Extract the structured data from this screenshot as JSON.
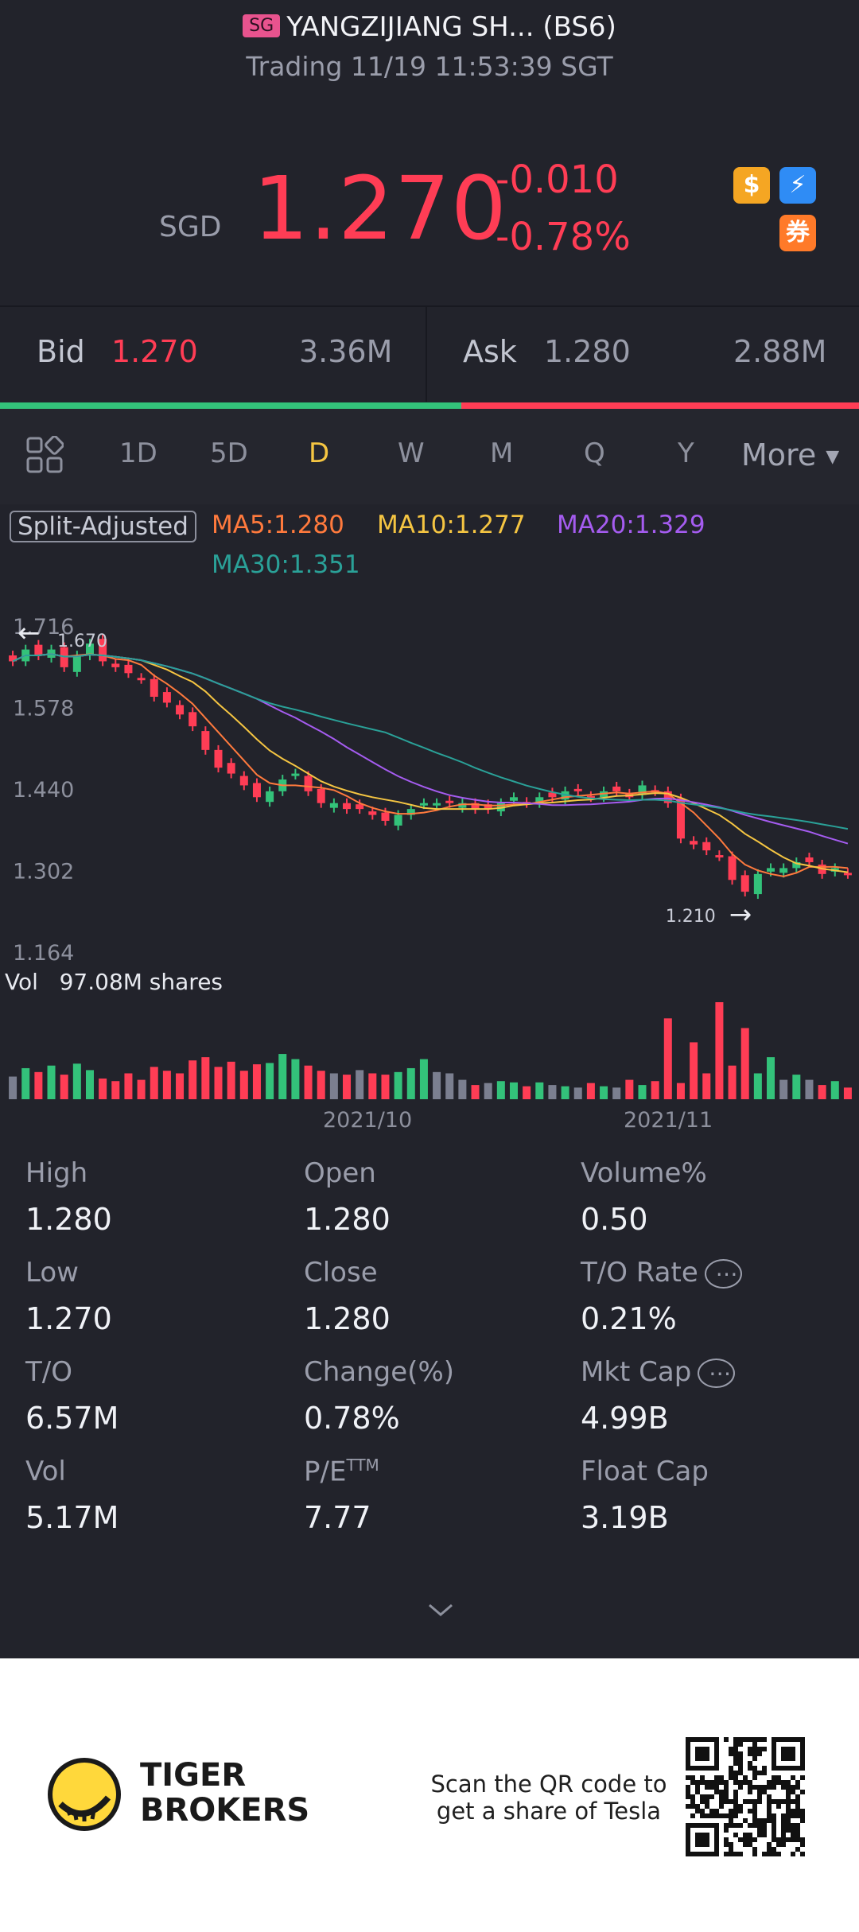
{
  "header": {
    "market_badge": "SG",
    "title": "YANGZIJIANG SH... (BS6)",
    "status": "Trading 11/19 11:53:39 SGT"
  },
  "quote": {
    "currency": "SGD",
    "price": "1.270",
    "change": "-0.010",
    "change_pct": "-0.78%",
    "icons": [
      "dollar-icon",
      "bolt-icon",
      "coupon-icon"
    ]
  },
  "orderbook": {
    "bid_label": "Bid",
    "bid_price": "1.270",
    "bid_size": "3.36M",
    "ask_label": "Ask",
    "ask_price": "1.280",
    "ask_size": "2.88M"
  },
  "tabs": {
    "items": [
      "1D",
      "5D",
      "D",
      "W",
      "M",
      "Q",
      "Y"
    ],
    "active": "D",
    "more_label": "More"
  },
  "chart": {
    "adjust_label": "Split-Adjusted",
    "ma5": "MA5:1.280",
    "ma10": "MA10:1.277",
    "ma20": "MA20:1.329",
    "ma30": "MA30:1.351",
    "ticks": [
      "1.716",
      "1.578",
      "1.440",
      "1.302",
      "1.164"
    ],
    "high_marker": "1.670",
    "low_marker": "1.210",
    "vol_label": "Vol",
    "vol_value": "97.08M shares",
    "date_labels": [
      "2021/10",
      "2021/11"
    ],
    "colors": {
      "up": "#33c27a",
      "down": "#ff3d55",
      "flat": "#7b7f90",
      "ma5": "#ff7a3d",
      "ma10": "#f5c542",
      "ma20": "#a55cf0",
      "ma30": "#2aa198"
    }
  },
  "chart_data": {
    "type": "candlestick",
    "ylim": [
      1.164,
      1.716
    ],
    "y_ticks": [
      1.716,
      1.578,
      1.44,
      1.302,
      1.164
    ],
    "x_ticks": [
      "2021/10",
      "2021/11"
    ],
    "candles_close": [
      1.64,
      1.66,
      1.65,
      1.66,
      1.63,
      1.65,
      1.67,
      1.64,
      1.63,
      1.62,
      1.61,
      1.58,
      1.57,
      1.55,
      1.53,
      1.49,
      1.46,
      1.45,
      1.43,
      1.41,
      1.42,
      1.44,
      1.45,
      1.42,
      1.4,
      1.4,
      1.39,
      1.39,
      1.38,
      1.37,
      1.38,
      1.39,
      1.4,
      1.4,
      1.4,
      1.4,
      1.39,
      1.39,
      1.4,
      1.41,
      1.4,
      1.41,
      1.41,
      1.42,
      1.42,
      1.41,
      1.42,
      1.42,
      1.41,
      1.43,
      1.42,
      1.4,
      1.34,
      1.33,
      1.32,
      1.31,
      1.27,
      1.25,
      1.28,
      1.29,
      1.29,
      1.3,
      1.3,
      1.28,
      1.29,
      1.28
    ],
    "volume_millions": [
      35,
      48,
      42,
      52,
      38,
      55,
      45,
      32,
      28,
      40,
      30,
      50,
      44,
      40,
      60,
      65,
      50,
      58,
      44,
      54,
      56,
      70,
      62,
      52,
      44,
      40,
      38,
      45,
      40,
      38,
      42,
      48,
      62,
      42,
      40,
      30,
      22,
      25,
      28,
      26,
      20,
      26,
      22,
      20,
      18,
      25,
      20,
      18,
      30,
      22,
      28,
      125,
      25,
      88,
      40,
      150,
      52,
      110,
      40,
      65,
      30,
      38,
      30,
      22,
      28,
      18
    ],
    "ma5_last": 1.28,
    "ma10_last": 1.277,
    "ma20_last": 1.329,
    "ma30_last": 1.351,
    "period_high": 1.67,
    "period_low": 1.21
  },
  "stats": {
    "cols": [
      [
        {
          "label": "High",
          "value": "1.280"
        },
        {
          "label": "Low",
          "value": "1.270"
        },
        {
          "label": "T/O",
          "value": "6.57M"
        },
        {
          "label": "Vol",
          "value": "5.17M"
        }
      ],
      [
        {
          "label": "Open",
          "value": "1.280"
        },
        {
          "label": "Close",
          "value": "1.280"
        },
        {
          "label": "Change(%)",
          "value": "0.78%"
        },
        {
          "label": "P/E",
          "value": "7.77",
          "sup": "TTM"
        }
      ],
      [
        {
          "label": "Volume%",
          "value": "0.50"
        },
        {
          "label": "T/O Rate",
          "value": "0.21%"
        },
        {
          "label": "Mkt Cap",
          "value": "4.99B"
        },
        {
          "label": "Float Cap",
          "value": "3.19B"
        }
      ]
    ]
  },
  "footer": {
    "brand_line1": "TIGER",
    "brand_line2": "BROKERS",
    "promo_line1": "Scan the QR code to",
    "promo_line2": "get a share of Tesla"
  }
}
